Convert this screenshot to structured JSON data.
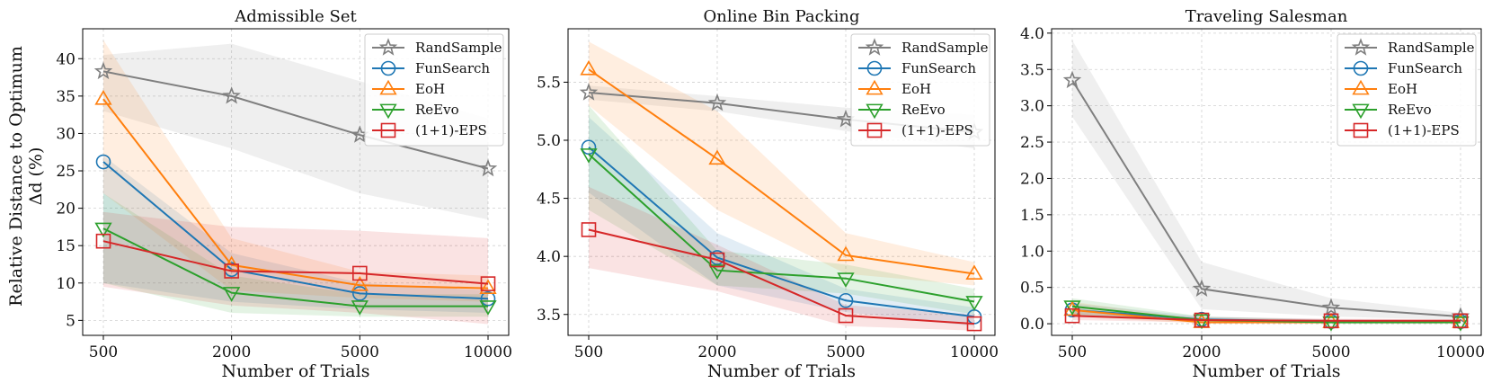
{
  "figure": {
    "ylabel_line1": "Relative Distance to Optimum",
    "ylabel_line2": "Δd (%)"
  },
  "chart_data": [
    {
      "type": "line",
      "title": "Admissible Set",
      "xlabel": "Number of Trials",
      "x": [
        "500",
        "2000",
        "5000",
        "10000"
      ],
      "ylim": [
        3.0,
        44.0
      ],
      "yticks": [
        5,
        10,
        15,
        20,
        25,
        30,
        35,
        40
      ],
      "legend_position": "top-right",
      "grid": true,
      "series": [
        {
          "name": "RandSample",
          "color": "#7f7f7f",
          "marker": "star",
          "values": [
            38.3,
            35.0,
            29.8,
            25.3
          ],
          "lower": [
            33.0,
            28.0,
            22.0,
            18.5
          ],
          "upper": [
            40.5,
            42.0,
            37.0,
            32.0
          ]
        },
        {
          "name": "FunSearch",
          "color": "#1f77b4",
          "marker": "circle",
          "values": [
            26.2,
            11.8,
            8.6,
            7.9
          ],
          "lower": [
            10.0,
            7.5,
            6.5,
            6.0
          ],
          "upper": [
            27.0,
            14.0,
            10.0,
            9.0
          ]
        },
        {
          "name": "EoH",
          "color": "#ff7f0e",
          "marker": "triangle-up",
          "values": [
            34.6,
            12.4,
            9.7,
            9.3
          ],
          "lower": [
            22.0,
            9.0,
            8.0,
            7.5
          ],
          "upper": [
            42.5,
            16.0,
            11.5,
            11.0
          ]
        },
        {
          "name": "ReEvo",
          "color": "#2ca02c",
          "marker": "triangle-down",
          "values": [
            17.3,
            8.7,
            6.9,
            6.9
          ],
          "lower": [
            10.0,
            6.0,
            5.5,
            5.5
          ],
          "upper": [
            22.0,
            11.0,
            8.5,
            8.5
          ]
        },
        {
          "name": "(1+1)-EPS",
          "color": "#d62728",
          "marker": "square",
          "values": [
            15.6,
            11.6,
            11.3,
            9.9
          ],
          "lower": [
            9.5,
            7.0,
            6.0,
            4.5
          ],
          "upper": [
            19.5,
            17.5,
            17.0,
            16.0
          ]
        }
      ]
    },
    {
      "type": "line",
      "title": "Online Bin Packing",
      "xlabel": "Number of Trials",
      "x": [
        "500",
        "2000",
        "5000",
        "10000"
      ],
      "ylim": [
        3.32,
        5.96
      ],
      "yticks": [
        3.5,
        4.0,
        4.5,
        5.0,
        5.5
      ],
      "legend_position": "top-right",
      "grid": true,
      "series": [
        {
          "name": "RandSample",
          "color": "#7f7f7f",
          "marker": "star",
          "values": [
            5.41,
            5.32,
            5.18,
            5.07
          ],
          "lower": [
            5.35,
            5.25,
            5.08,
            4.93
          ],
          "upper": [
            5.47,
            5.38,
            5.28,
            5.22
          ]
        },
        {
          "name": "FunSearch",
          "color": "#1f77b4",
          "marker": "circle",
          "values": [
            4.94,
            3.99,
            3.62,
            3.48
          ],
          "lower": [
            4.55,
            3.75,
            3.52,
            3.4
          ],
          "upper": [
            5.2,
            4.2,
            3.72,
            3.56
          ]
        },
        {
          "name": "EoH",
          "color": "#ff7f0e",
          "marker": "triangle-up",
          "values": [
            5.61,
            4.84,
            4.01,
            3.85
          ],
          "lower": [
            5.3,
            4.4,
            3.85,
            3.75
          ],
          "upper": [
            5.85,
            5.25,
            4.2,
            3.95
          ]
        },
        {
          "name": "ReEvo",
          "color": "#2ca02c",
          "marker": "triangle-down",
          "values": [
            4.88,
            3.88,
            3.81,
            3.61
          ],
          "lower": [
            4.4,
            3.75,
            3.68,
            3.5
          ],
          "upper": [
            5.3,
            4.05,
            3.93,
            3.72
          ]
        },
        {
          "name": "(1+1)-EPS",
          "color": "#d62728",
          "marker": "square",
          "values": [
            4.23,
            3.97,
            3.49,
            3.42
          ],
          "lower": [
            3.9,
            3.7,
            3.4,
            3.36
          ],
          "upper": [
            4.6,
            4.1,
            3.58,
            3.5
          ]
        }
      ]
    },
    {
      "type": "line",
      "title": "Traveling Salesman",
      "xlabel": "Number of Trials",
      "x": [
        "500",
        "2000",
        "5000",
        "10000"
      ],
      "ylim": [
        -0.16,
        4.06
      ],
      "yticks": [
        0.0,
        0.5,
        1.0,
        1.5,
        2.0,
        2.5,
        3.0,
        3.5,
        4.0
      ],
      "legend_position": "top-right",
      "grid": true,
      "series": [
        {
          "name": "RandSample",
          "color": "#7f7f7f",
          "marker": "star",
          "values": [
            3.35,
            0.48,
            0.22,
            0.1
          ],
          "lower": [
            2.85,
            0.2,
            0.1,
            0.05
          ],
          "upper": [
            3.9,
            0.85,
            0.35,
            0.15
          ]
        },
        {
          "name": "FunSearch",
          "color": "#1f77b4",
          "marker": "circle",
          "values": [
            0.19,
            0.06,
            0.03,
            0.03
          ],
          "lower": [
            0.1,
            0.03,
            0.01,
            0.01
          ],
          "upper": [
            0.28,
            0.1,
            0.06,
            0.05
          ]
        },
        {
          "name": "EoH",
          "color": "#ff7f0e",
          "marker": "triangle-up",
          "values": [
            0.19,
            0.02,
            0.02,
            0.02
          ],
          "lower": [
            0.1,
            0.0,
            0.0,
            0.0
          ],
          "upper": [
            0.3,
            0.06,
            0.04,
            0.04
          ]
        },
        {
          "name": "ReEvo",
          "color": "#2ca02c",
          "marker": "triangle-down",
          "values": [
            0.24,
            0.05,
            0.02,
            0.02
          ],
          "lower": [
            0.12,
            0.02,
            0.0,
            0.0
          ],
          "upper": [
            0.35,
            0.1,
            0.05,
            0.05
          ]
        },
        {
          "name": "(1+1)-EPS",
          "color": "#d62728",
          "marker": "square",
          "values": [
            0.11,
            0.05,
            0.04,
            0.04
          ],
          "lower": [
            0.05,
            0.02,
            0.02,
            0.02
          ],
          "upper": [
            0.18,
            0.09,
            0.07,
            0.06
          ]
        }
      ]
    }
  ]
}
